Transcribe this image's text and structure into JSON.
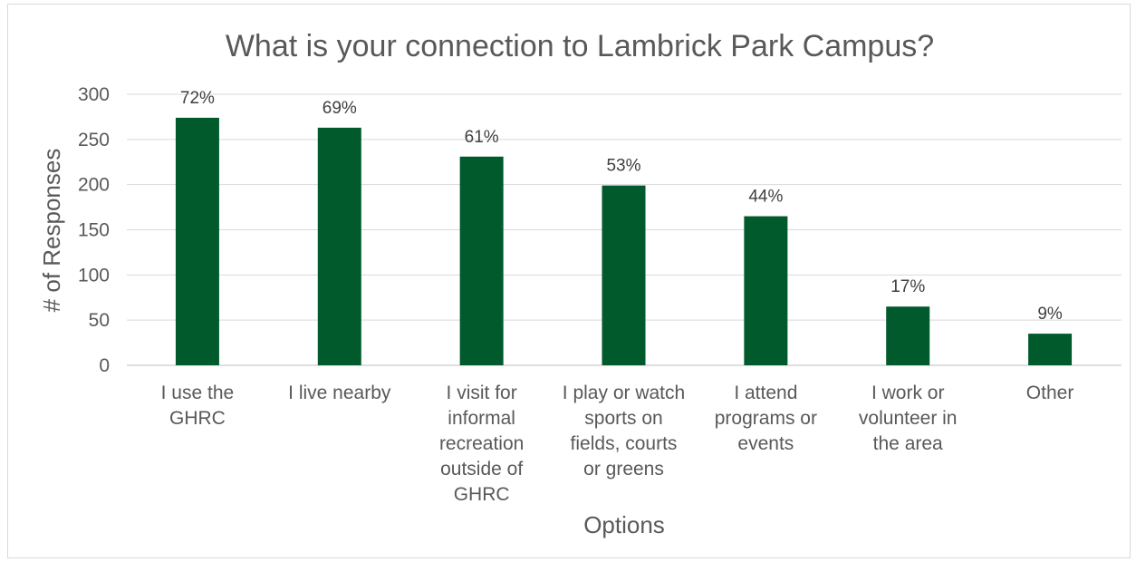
{
  "chart_data": {
    "type": "bar",
    "title": "What is your connection to Lambrick Park Campus?",
    "xlabel": "Options",
    "ylabel": "# of Responses",
    "ylim": [
      0,
      300
    ],
    "yticks": [
      0,
      50,
      100,
      150,
      200,
      250,
      300
    ],
    "grid": true,
    "legend": "none",
    "bar_color": "#005a2c",
    "categories": [
      [
        "I use the",
        "GHRC"
      ],
      [
        "I live nearby"
      ],
      [
        "I visit for",
        "informal",
        "recreation",
        "outside of",
        "GHRC"
      ],
      [
        "I play or watch",
        "sports on",
        "fields, courts",
        "or greens"
      ],
      [
        "I attend",
        "programs or",
        "events"
      ],
      [
        "I work or",
        "volunteer in",
        "the area"
      ],
      [
        "Other"
      ]
    ],
    "values": [
      274,
      263,
      231,
      199,
      165,
      65,
      35
    ],
    "data_labels": [
      "72%",
      "69%",
      "61%",
      "53%",
      "44%",
      "17%",
      "9%"
    ]
  }
}
